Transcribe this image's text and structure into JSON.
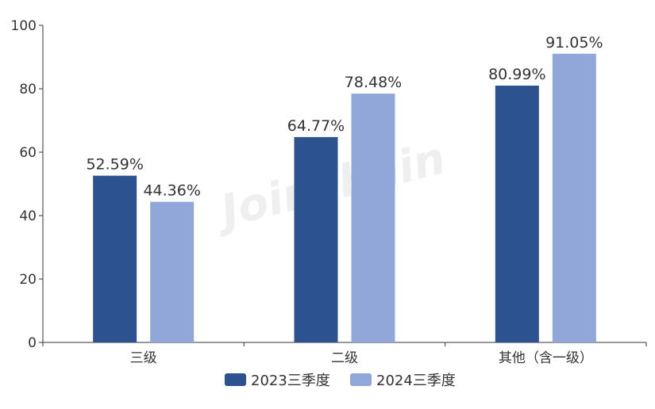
{
  "watermark": "Joinchain",
  "chart_data": {
    "type": "bar",
    "categories": [
      "三级",
      "二级",
      "其他（含一级）"
    ],
    "series": [
      {
        "name": "2023三季度",
        "values": [
          52.59,
          64.77,
          80.99
        ],
        "labels": [
          "52.59%",
          "64.77%",
          "80.99%"
        ],
        "color": "#2d5290"
      },
      {
        "name": "2024三季度",
        "values": [
          44.36,
          78.48,
          91.05
        ],
        "labels": [
          "44.36%",
          "78.48%",
          "91.05%"
        ],
        "color": "#91a7da"
      }
    ],
    "ylim": [
      0,
      100
    ],
    "yticks": [
      0,
      20,
      40,
      60,
      80,
      100
    ],
    "legend": "bottom",
    "grid": false
  }
}
